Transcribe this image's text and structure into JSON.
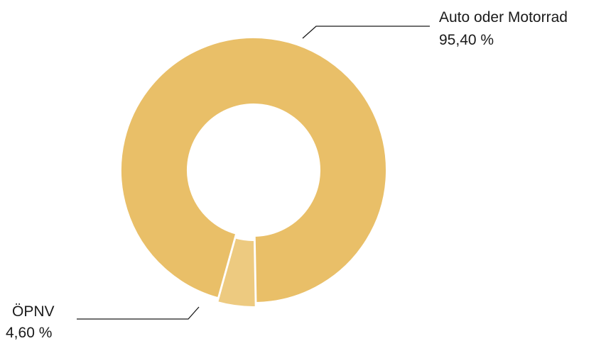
{
  "chart_data": {
    "type": "pie",
    "variant": "donut",
    "slices": [
      {
        "label": "Auto oder Motorrad",
        "value": 95.4,
        "value_label": "95,40 %",
        "color": "#E9BF68"
      },
      {
        "label": "ÖPNV",
        "value": 4.6,
        "value_label": "4,60 %",
        "color": "#EDCA80"
      }
    ],
    "legend": "none",
    "label_placement": "outside-with-leader-lines"
  }
}
